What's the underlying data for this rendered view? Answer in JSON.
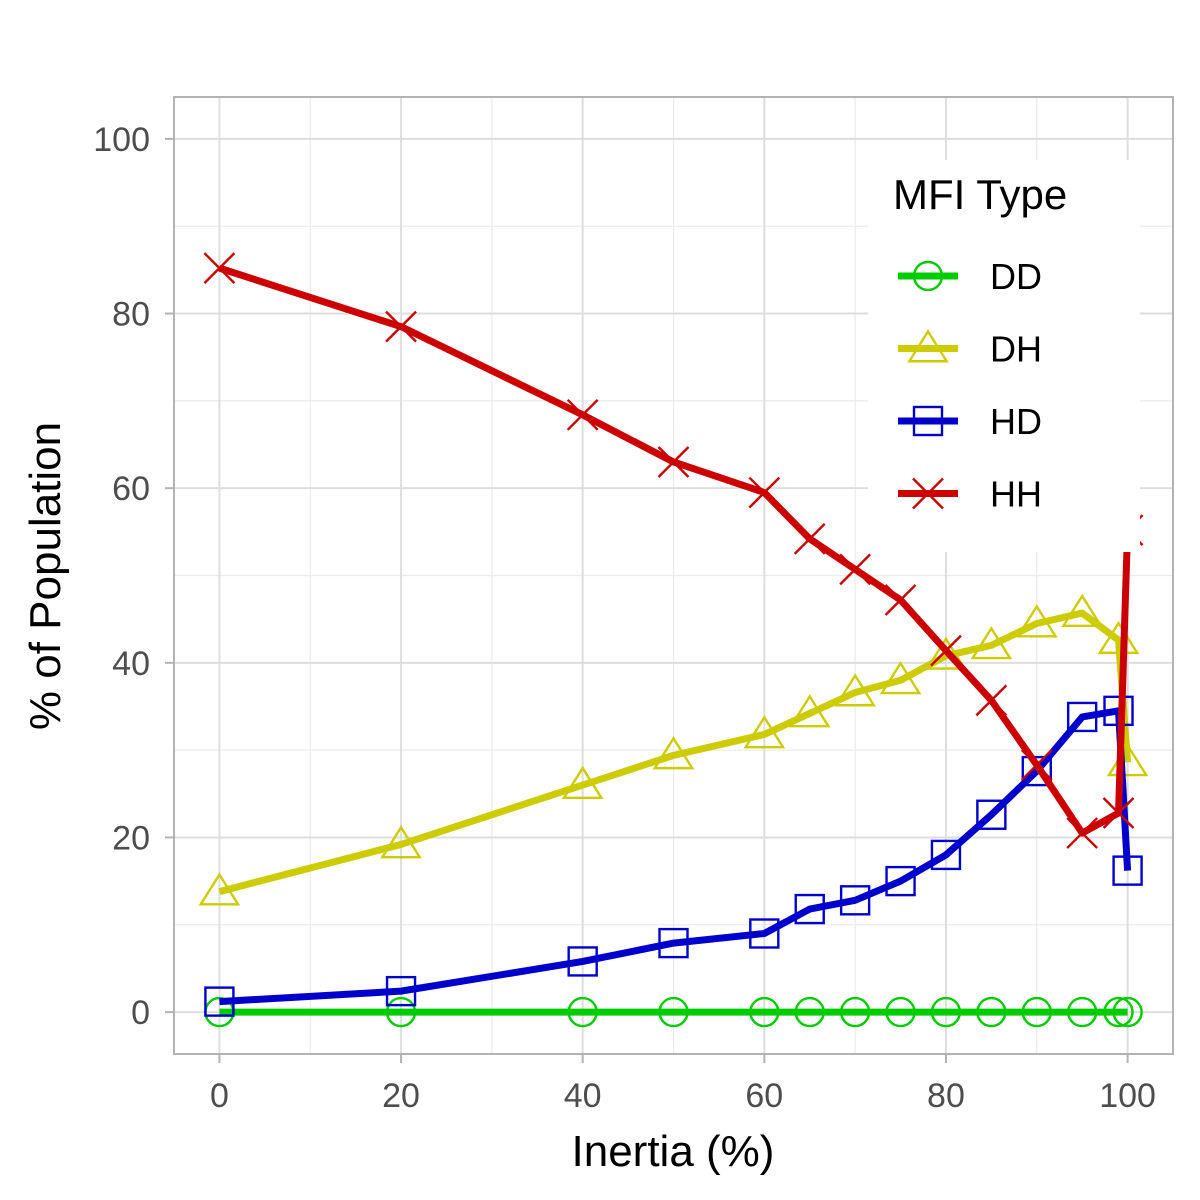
{
  "chart_data": {
    "type": "line",
    "title": "",
    "xlabel": "Inertia (%)",
    "ylabel": "% of Population",
    "xlim": [
      -5,
      105
    ],
    "ylim": [
      -4.8,
      104.8
    ],
    "xticks": [
      0,
      20,
      40,
      60,
      80,
      100
    ],
    "yticks": [
      0,
      20,
      40,
      60,
      80,
      100
    ],
    "x_tick_labels": [
      "0",
      "20",
      "40",
      "60",
      "80",
      "100"
    ],
    "y_tick_labels": [
      "0",
      "20",
      "40",
      "60",
      "80",
      "100"
    ],
    "grid": true,
    "legend": {
      "title": "MFI Type",
      "position": "top-right"
    },
    "x": [
      0,
      20,
      40,
      50,
      60,
      65,
      70,
      75,
      80,
      85,
      90,
      95,
      99,
      100
    ],
    "series": [
      {
        "name": "DD",
        "color": "#00CC00",
        "marker": "circle",
        "values": [
          0,
          0,
          0,
          0,
          0,
          0,
          0,
          0,
          0,
          0,
          0,
          0,
          0,
          0
        ]
      },
      {
        "name": "DH",
        "color": "#CCCC00",
        "marker": "triangle",
        "values": [
          13.8,
          19.2,
          26.0,
          29.4,
          31.8,
          34.2,
          36.6,
          38.0,
          40.8,
          42.0,
          44.5,
          45.7,
          42.6,
          28.6
        ]
      },
      {
        "name": "HD",
        "color": "#0000CC",
        "marker": "square",
        "values": [
          1.2,
          2.4,
          5.8,
          7.9,
          9.0,
          11.8,
          12.8,
          15.0,
          18.0,
          22.6,
          27.6,
          33.8,
          34.5,
          16.2
        ]
      },
      {
        "name": "HH",
        "color": "#CC0000",
        "marker": "x",
        "values": [
          85.2,
          78.5,
          68.4,
          63.0,
          59.5,
          54.2,
          50.7,
          47.2,
          41.4,
          35.7,
          28.3,
          20.5,
          22.8,
          55.2
        ]
      }
    ]
  }
}
